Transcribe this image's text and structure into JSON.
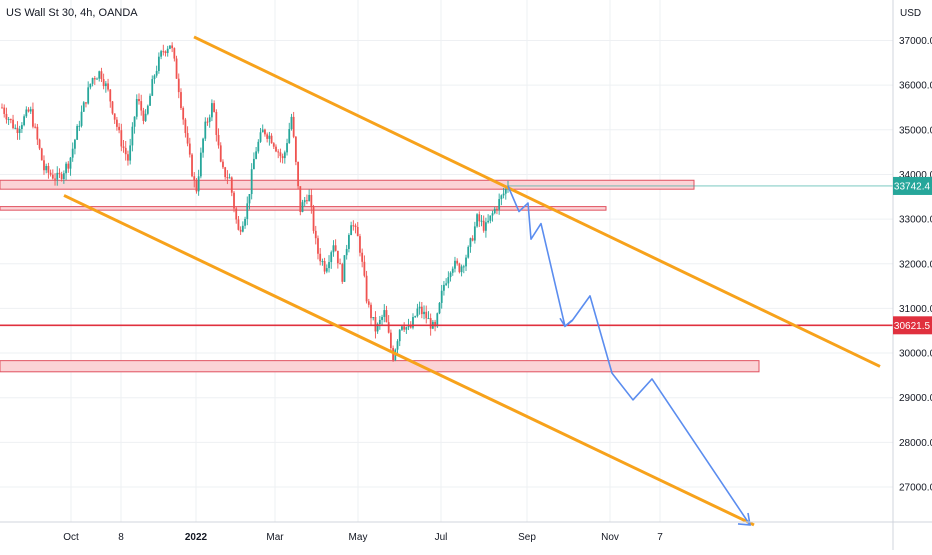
{
  "header": {
    "title": "US Wall St 30, 4h, OANDA",
    "currency": "USD"
  },
  "colors": {
    "up": "#26a69a",
    "down": "#ef5350",
    "channel": "#f7a21b",
    "projection": "#5b8def",
    "zone_fill": "#fbd3d6",
    "zone_stroke": "#e05260",
    "level_line": "#e0303e",
    "grid": "#eef0f3",
    "axis_border": "#d1d4dc"
  },
  "chart_data": {
    "type": "candlestick",
    "title": "US Wall St 30, 4h, OANDA",
    "ylabel": "USD",
    "ylim": [
      26050,
      37600
    ],
    "x_ticks": [
      "Oct",
      "8",
      "2022",
      "Mar",
      "May",
      "Jul",
      "Sep",
      "Nov",
      "7"
    ],
    "y_ticks": [
      27000,
      28000,
      29000,
      30000,
      31000,
      32000,
      33000,
      34000,
      35000,
      36000,
      37000
    ],
    "y_tick_labels": [
      "27000.0",
      "28000.0",
      "29000.0",
      "30000.0",
      "31000.0",
      "32000.0",
      "33000.0",
      "34000.0",
      "35000.0",
      "36000.0",
      "37000.0"
    ],
    "price_series": [
      {
        "i": 0,
        "v": 35500
      },
      {
        "i": 0.025,
        "v": 35000
      },
      {
        "i": 0.05,
        "v": 35450
      },
      {
        "i": 0.075,
        "v": 34100
      },
      {
        "i": 0.1,
        "v": 33900
      },
      {
        "i": 0.12,
        "v": 34300
      },
      {
        "i": 0.14,
        "v": 35300
      },
      {
        "i": 0.16,
        "v": 36150
      },
      {
        "i": 0.175,
        "v": 36300
      },
      {
        "i": 0.19,
        "v": 35800
      },
      {
        "i": 0.21,
        "v": 34800
      },
      {
        "i": 0.225,
        "v": 34300
      },
      {
        "i": 0.24,
        "v": 35700
      },
      {
        "i": 0.255,
        "v": 35200
      },
      {
        "i": 0.27,
        "v": 36200
      },
      {
        "i": 0.285,
        "v": 36750
      },
      {
        "i": 0.3,
        "v": 36950
      },
      {
        "i": 0.315,
        "v": 35900
      },
      {
        "i": 0.33,
        "v": 34600
      },
      {
        "i": 0.345,
        "v": 33600
      },
      {
        "i": 0.36,
        "v": 35000
      },
      {
        "i": 0.375,
        "v": 35600
      },
      {
        "i": 0.39,
        "v": 34100
      },
      {
        "i": 0.405,
        "v": 33900
      },
      {
        "i": 0.42,
        "v": 32700
      },
      {
        "i": 0.435,
        "v": 33200
      },
      {
        "i": 0.45,
        "v": 34500
      },
      {
        "i": 0.465,
        "v": 35000
      },
      {
        "i": 0.48,
        "v": 34800
      },
      {
        "i": 0.5,
        "v": 34300
      },
      {
        "i": 0.515,
        "v": 35300
      },
      {
        "i": 0.53,
        "v": 33200
      },
      {
        "i": 0.545,
        "v": 33600
      },
      {
        "i": 0.56,
        "v": 32300
      },
      {
        "i": 0.575,
        "v": 31900
      },
      {
        "i": 0.59,
        "v": 32500
      },
      {
        "i": 0.605,
        "v": 31700
      },
      {
        "i": 0.62,
        "v": 33000
      },
      {
        "i": 0.635,
        "v": 32500
      },
      {
        "i": 0.65,
        "v": 31100
      },
      {
        "i": 0.665,
        "v": 30500
      },
      {
        "i": 0.68,
        "v": 30900
      },
      {
        "i": 0.695,
        "v": 29900
      },
      {
        "i": 0.71,
        "v": 30700
      },
      {
        "i": 0.725,
        "v": 30500
      },
      {
        "i": 0.74,
        "v": 31000
      },
      {
        "i": 0.755,
        "v": 30800
      },
      {
        "i": 0.77,
        "v": 30500
      },
      {
        "i": 0.785,
        "v": 31500
      },
      {
        "i": 0.8,
        "v": 32000
      },
      {
        "i": 0.815,
        "v": 31900
      },
      {
        "i": 0.83,
        "v": 32300
      },
      {
        "i": 0.845,
        "v": 33000
      },
      {
        "i": 0.86,
        "v": 32800
      },
      {
        "i": 0.88,
        "v": 33300
      },
      {
        "i": 0.9,
        "v": 33742.4
      }
    ],
    "channel_upper": [
      {
        "x": "2022-01-04",
        "y": 37080
      },
      {
        "x": "2022-11-20",
        "y": 29700
      }
    ],
    "channel_lower": [
      {
        "x": "2021-10-01",
        "y": 33530
      },
      {
        "x": "2022-12-15",
        "y": 26150
      }
    ],
    "zones": [
      {
        "low": 33670,
        "high": 33870
      },
      {
        "low": 33200,
        "high": 33280
      },
      {
        "low": 29580,
        "high": 29830
      }
    ],
    "projection_path": [
      33742.4,
      33170,
      33360,
      32550,
      32900,
      31750,
      30600,
      30720,
      31280,
      29550,
      28950,
      29420,
      26150
    ],
    "current_price": 33742.4,
    "current_price_label": "33742.4",
    "level_price": 30621.5,
    "level_price_label": "30621.5"
  }
}
